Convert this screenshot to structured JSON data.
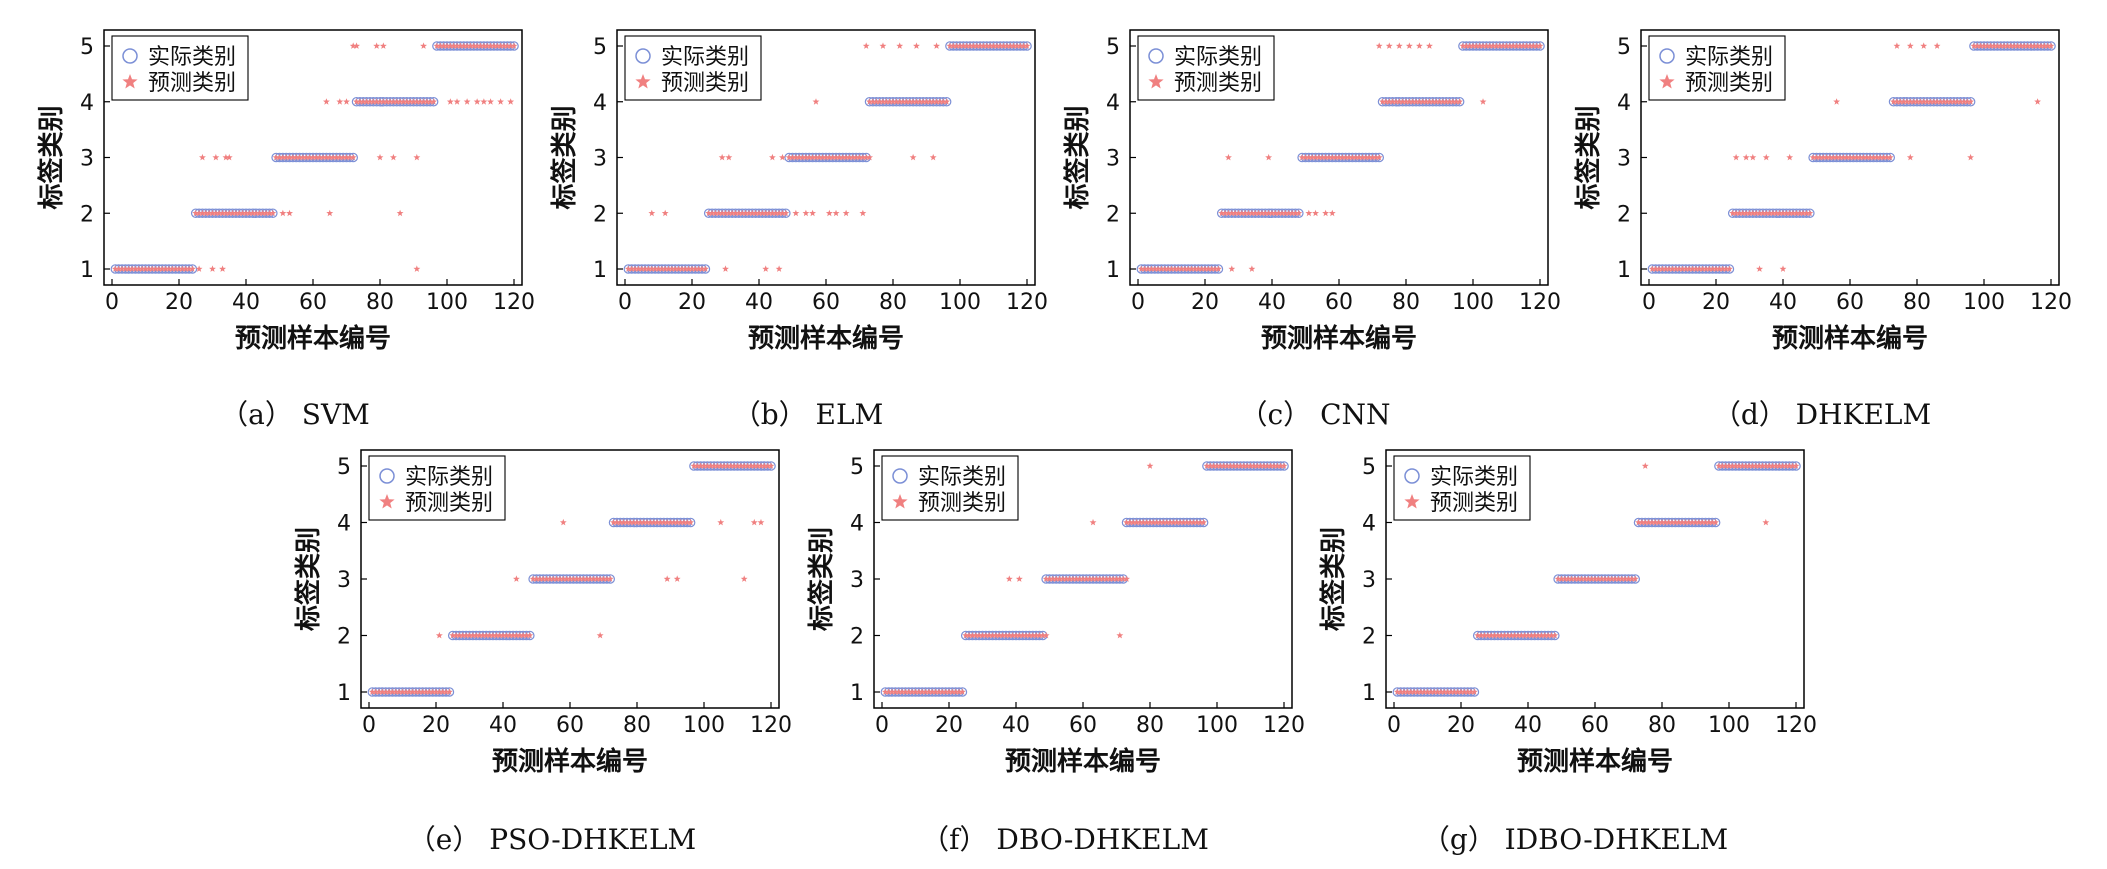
{
  "figure": {
    "legend": {
      "actual_label": "实际类别",
      "predicted_label": "预测类别"
    },
    "colors": {
      "actual": "#7b8fd6",
      "predicted": "#f08080",
      "axis": "#000000"
    }
  },
  "chart_data": [
    {
      "type": "scatter",
      "caption": "（a） SVM",
      "xlabel": "预测样本编号",
      "ylabel": "标签类别",
      "xlim": [
        0,
        120
      ],
      "ylim": [
        1,
        5
      ],
      "xticks": [
        0,
        20,
        40,
        60,
        80,
        100,
        120
      ],
      "yticks": [
        1,
        2,
        3,
        4,
        5
      ],
      "legend_position": "top-left",
      "series": [
        {
          "name": "实际类别",
          "marker": "circle",
          "segments": [
            [
              1,
              24,
              1
            ],
            [
              25,
              48,
              2
            ],
            [
              49,
              72,
              3
            ],
            [
              73,
              96,
              4
            ],
            [
              97,
              120,
              5
            ]
          ]
        },
        {
          "name": "预测类别",
          "marker": "star",
          "segments": [
            [
              1,
              24,
              1
            ],
            [
              25,
              48,
              2
            ],
            [
              49,
              72,
              3
            ],
            [
              73,
              96,
              4
            ],
            [
              97,
              120,
              5
            ]
          ],
          "outliers": [
            [
              27,
              3
            ],
            [
              31,
              3
            ],
            [
              34,
              3
            ],
            [
              35,
              3
            ],
            [
              26,
              1
            ],
            [
              30,
              1
            ],
            [
              33,
              1
            ],
            [
              51,
              2
            ],
            [
              53,
              2
            ],
            [
              65,
              2
            ],
            [
              86,
              2
            ],
            [
              72,
              5
            ],
            [
              73,
              5
            ],
            [
              79,
              5
            ],
            [
              81,
              5
            ],
            [
              64,
              4
            ],
            [
              68,
              4
            ],
            [
              70,
              4
            ],
            [
              80,
              3
            ],
            [
              84,
              3
            ],
            [
              91,
              3
            ],
            [
              91,
              1
            ],
            [
              93,
              5
            ],
            [
              101,
              4
            ],
            [
              103,
              4
            ],
            [
              106,
              4
            ],
            [
              109,
              4
            ],
            [
              111,
              4
            ],
            [
              113,
              4
            ],
            [
              116,
              4
            ],
            [
              119,
              4
            ]
          ]
        }
      ]
    },
    {
      "type": "scatter",
      "caption": "（b） ELM",
      "xlabel": "预测样本编号",
      "ylabel": "标签类别",
      "xlim": [
        0,
        120
      ],
      "ylim": [
        1,
        5
      ],
      "xticks": [
        0,
        20,
        40,
        60,
        80,
        100,
        120
      ],
      "yticks": [
        1,
        2,
        3,
        4,
        5
      ],
      "legend_position": "top-left",
      "series": [
        {
          "name": "实际类别",
          "marker": "circle",
          "segments": [
            [
              1,
              24,
              1
            ],
            [
              25,
              48,
              2
            ],
            [
              49,
              72,
              3
            ],
            [
              73,
              96,
              4
            ],
            [
              97,
              120,
              5
            ]
          ]
        },
        {
          "name": "预测类别",
          "marker": "star",
          "segments": [
            [
              1,
              24,
              1
            ],
            [
              25,
              48,
              2
            ],
            [
              49,
              72,
              3
            ],
            [
              73,
              96,
              4
            ],
            [
              97,
              120,
              5
            ]
          ],
          "outliers": [
            [
              8,
              2
            ],
            [
              12,
              2
            ],
            [
              29,
              3
            ],
            [
              31,
              3
            ],
            [
              30,
              1
            ],
            [
              42,
              1
            ],
            [
              46,
              1
            ],
            [
              44,
              3
            ],
            [
              47,
              3
            ],
            [
              51,
              2
            ],
            [
              54,
              2
            ],
            [
              56,
              2
            ],
            [
              61,
              2
            ],
            [
              63,
              2
            ],
            [
              66,
              2
            ],
            [
              71,
              2
            ],
            [
              57,
              4
            ],
            [
              73,
              3
            ],
            [
              86,
              3
            ],
            [
              92,
              3
            ],
            [
              72,
              5
            ],
            [
              77,
              5
            ],
            [
              82,
              5
            ],
            [
              87,
              5
            ],
            [
              93,
              5
            ]
          ]
        }
      ]
    },
    {
      "type": "scatter",
      "caption": "（c） CNN",
      "xlabel": "预测样本编号",
      "ylabel": "标签类别",
      "xlim": [
        0,
        120
      ],
      "ylim": [
        1,
        5
      ],
      "xticks": [
        0,
        20,
        40,
        60,
        80,
        100,
        120
      ],
      "yticks": [
        1,
        2,
        3,
        4,
        5
      ],
      "legend_position": "top-left",
      "series": [
        {
          "name": "实际类别",
          "marker": "circle",
          "segments": [
            [
              1,
              24,
              1
            ],
            [
              25,
              48,
              2
            ],
            [
              49,
              72,
              3
            ],
            [
              73,
              96,
              4
            ],
            [
              97,
              120,
              5
            ]
          ]
        },
        {
          "name": "预测类别",
          "marker": "star",
          "segments": [
            [
              1,
              24,
              1
            ],
            [
              25,
              48,
              2
            ],
            [
              49,
              72,
              3
            ],
            [
              73,
              96,
              4
            ],
            [
              97,
              120,
              5
            ]
          ],
          "outliers": [
            [
              27,
              3
            ],
            [
              39,
              3
            ],
            [
              28,
              1
            ],
            [
              34,
              1
            ],
            [
              51,
              2
            ],
            [
              53,
              2
            ],
            [
              56,
              2
            ],
            [
              58,
              2
            ],
            [
              72,
              5
            ],
            [
              75,
              5
            ],
            [
              78,
              5
            ],
            [
              81,
              5
            ],
            [
              84,
              5
            ],
            [
              87,
              5
            ],
            [
              103,
              4
            ]
          ]
        }
      ]
    },
    {
      "type": "scatter",
      "caption": "（d） DHKELM",
      "xlabel": "预测样本编号",
      "ylabel": "标签类别",
      "xlim": [
        0,
        120
      ],
      "ylim": [
        1,
        5
      ],
      "xticks": [
        0,
        20,
        40,
        60,
        80,
        100,
        120
      ],
      "yticks": [
        1,
        2,
        3,
        4,
        5
      ],
      "legend_position": "top-left",
      "series": [
        {
          "name": "实际类别",
          "marker": "circle",
          "segments": [
            [
              1,
              24,
              1
            ],
            [
              25,
              48,
              2
            ],
            [
              49,
              72,
              3
            ],
            [
              73,
              96,
              4
            ],
            [
              97,
              120,
              5
            ]
          ]
        },
        {
          "name": "预测类别",
          "marker": "star",
          "segments": [
            [
              1,
              24,
              1
            ],
            [
              25,
              48,
              2
            ],
            [
              49,
              72,
              3
            ],
            [
              73,
              96,
              4
            ],
            [
              97,
              120,
              5
            ]
          ],
          "outliers": [
            [
              26,
              3
            ],
            [
              29,
              3
            ],
            [
              31,
              3
            ],
            [
              35,
              3
            ],
            [
              33,
              1
            ],
            [
              40,
              1
            ],
            [
              42,
              3
            ],
            [
              56,
              4
            ],
            [
              74,
              5
            ],
            [
              78,
              5
            ],
            [
              82,
              5
            ],
            [
              86,
              5
            ],
            [
              78,
              3
            ],
            [
              96,
              3
            ],
            [
              116,
              4
            ]
          ]
        }
      ]
    },
    {
      "type": "scatter",
      "caption": "（e） PSO-DHKELM",
      "xlabel": "预测样本编号",
      "ylabel": "标签类别",
      "xlim": [
        0,
        120
      ],
      "ylim": [
        1,
        5
      ],
      "xticks": [
        0,
        20,
        40,
        60,
        80,
        100,
        120
      ],
      "yticks": [
        1,
        2,
        3,
        4,
        5
      ],
      "legend_position": "top-left",
      "series": [
        {
          "name": "实际类别",
          "marker": "circle",
          "segments": [
            [
              1,
              24,
              1
            ],
            [
              25,
              48,
              2
            ],
            [
              49,
              72,
              3
            ],
            [
              73,
              96,
              4
            ],
            [
              97,
              120,
              5
            ]
          ]
        },
        {
          "name": "预测类别",
          "marker": "star",
          "segments": [
            [
              1,
              24,
              1
            ],
            [
              25,
              48,
              2
            ],
            [
              49,
              72,
              3
            ],
            [
              73,
              96,
              4
            ],
            [
              97,
              120,
              5
            ]
          ],
          "outliers": [
            [
              21,
              2
            ],
            [
              44,
              3
            ],
            [
              58,
              4
            ],
            [
              69,
              2
            ],
            [
              89,
              3
            ],
            [
              92,
              3
            ],
            [
              105,
              4
            ],
            [
              112,
              3
            ],
            [
              115,
              4
            ],
            [
              117,
              4
            ]
          ]
        }
      ]
    },
    {
      "type": "scatter",
      "caption": "（f） DBO-DHKELM",
      "xlabel": "预测样本编号",
      "ylabel": "标签类别",
      "xlim": [
        0,
        120
      ],
      "ylim": [
        1,
        5
      ],
      "xticks": [
        0,
        20,
        40,
        60,
        80,
        100,
        120
      ],
      "yticks": [
        1,
        2,
        3,
        4,
        5
      ],
      "legend_position": "top-left",
      "series": [
        {
          "name": "实际类别",
          "marker": "circle",
          "segments": [
            [
              1,
              24,
              1
            ],
            [
              25,
              48,
              2
            ],
            [
              49,
              72,
              3
            ],
            [
              73,
              96,
              4
            ],
            [
              97,
              120,
              5
            ]
          ]
        },
        {
          "name": "预测类别",
          "marker": "star",
          "segments": [
            [
              1,
              24,
              1
            ],
            [
              25,
              48,
              2
            ],
            [
              49,
              72,
              3
            ],
            [
              73,
              96,
              4
            ],
            [
              97,
              120,
              5
            ]
          ],
          "outliers": [
            [
              38,
              3
            ],
            [
              41,
              3
            ],
            [
              49,
              2
            ],
            [
              63,
              4
            ],
            [
              71,
              2
            ],
            [
              73,
              3
            ],
            [
              80,
              5
            ]
          ]
        }
      ]
    },
    {
      "type": "scatter",
      "caption": "（g） IDBO-DHKELM",
      "xlabel": "预测样本编号",
      "ylabel": "标签类别",
      "xlim": [
        0,
        120
      ],
      "ylim": [
        1,
        5
      ],
      "xticks": [
        0,
        20,
        40,
        60,
        80,
        100,
        120
      ],
      "yticks": [
        1,
        2,
        3,
        4,
        5
      ],
      "legend_position": "top-left",
      "series": [
        {
          "name": "实际类别",
          "marker": "circle",
          "segments": [
            [
              1,
              24,
              1
            ],
            [
              25,
              48,
              2
            ],
            [
              49,
              72,
              3
            ],
            [
              73,
              96,
              4
            ],
            [
              97,
              120,
              5
            ]
          ]
        },
        {
          "name": "预测类别",
          "marker": "star",
          "segments": [
            [
              1,
              24,
              1
            ],
            [
              25,
              48,
              2
            ],
            [
              49,
              72,
              3
            ],
            [
              73,
              96,
              4
            ],
            [
              97,
              120,
              5
            ]
          ],
          "outliers": [
            [
              75,
              5
            ],
            [
              111,
              4
            ]
          ]
        }
      ]
    }
  ]
}
